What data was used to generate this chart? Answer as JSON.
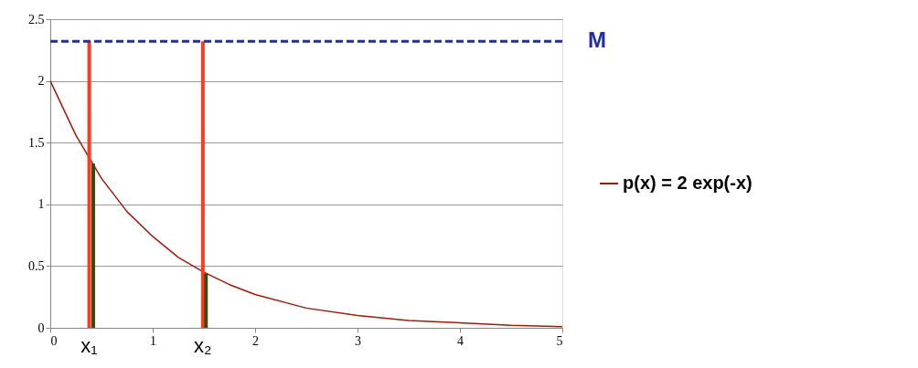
{
  "chart_data": {
    "type": "line",
    "xlim": [
      0,
      5
    ],
    "xticks": [
      0,
      1,
      2,
      3,
      4,
      5
    ],
    "ylim": [
      0,
      2.5
    ],
    "yticks": [
      0,
      0.5,
      1,
      1.5,
      2,
      2.5
    ],
    "grid": "y",
    "legend": "right",
    "marker": "none",
    "series": [
      {
        "name": "p(x) = 2 exp(-x)",
        "color": "#a01a0a",
        "x": [
          0,
          0.25,
          0.5,
          0.75,
          1,
          1.25,
          1.5,
          1.75,
          2,
          2.5,
          3,
          3.5,
          4,
          4.5,
          5
        ],
        "values": [
          2,
          1.56,
          1.21,
          0.94,
          0.74,
          0.57,
          0.45,
          0.35,
          0.27,
          0.16,
          0.1,
          0.06,
          0.04,
          0.02,
          0.01
        ]
      },
      {
        "type": "bar",
        "color": "#ff3b1f",
        "x": [
          0.38,
          1.49
        ],
        "values": [
          2.32,
          2.32
        ]
      },
      {
        "type": "bar",
        "color": "#3a4a10",
        "x": [
          0.42,
          1.52
        ],
        "values": [
          1.33,
          0.44
        ]
      }
    ],
    "ref_lines": [
      {
        "axis": "y",
        "value": 2.32,
        "color": "#1f2fa0",
        "line_style": "dashed"
      }
    ],
    "annotations": [
      {
        "text": "x₁",
        "x": 0.38,
        "y": 0
      },
      {
        "text": "x₂",
        "x": 1.49,
        "y": 0
      },
      {
        "text": "M",
        "x": 5,
        "y": 2.32
      }
    ]
  }
}
